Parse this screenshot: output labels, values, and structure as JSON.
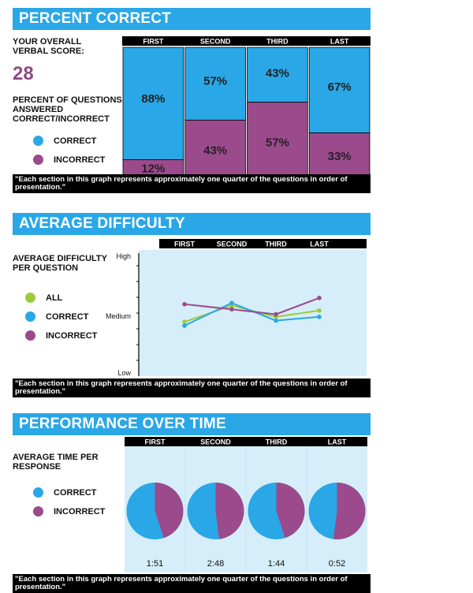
{
  "percent_correct": {
    "header": "PERCENT CORRECT",
    "overall_label": "YOUR OVERALL VERBAL SCORE:",
    "score": "28",
    "pct_label": "PERCENT OF QUESTIONS ANSWERED CORRECT/INCORRECT",
    "legend_correct": "CORRECT",
    "legend_incorrect": "INCORRECT",
    "note": "\"Each section in this graph represents approximately one quarter of the questions in order of presentation.\""
  },
  "average_difficulty": {
    "header": "AVERAGE DIFFICULTY",
    "label": "AVERAGE DIFFICULTY PER QUESTION",
    "legend_all": "ALL",
    "legend_correct": "CORRECT",
    "legend_incorrect": "INCORRECT",
    "note": "\"Each section in this graph represents approximately one quarter of the questions in order of presentation.\""
  },
  "performance_over_time": {
    "header": "PERFORMANCE OVER TIME",
    "label": "AVERAGE TIME PER RESPONSE",
    "legend_correct": "CORRECT",
    "legend_incorrect": "INCORRECT",
    "note": "\"Each section in this graph represents approximately one quarter of the questions in order of presentation.\""
  },
  "colors": {
    "correct": "#2aa7e6",
    "incorrect": "#9b4a8b",
    "all": "#9ccc3c",
    "header": "#2aa7e6",
    "plot_bg": "#d5eef9"
  },
  "chart_data": [
    {
      "type": "bar",
      "title": "PERCENT CORRECT",
      "categories": [
        "FIRST",
        "SECOND",
        "THIRD",
        "LAST"
      ],
      "series": [
        {
          "name": "CORRECT",
          "values": [
            88,
            57,
            43,
            67
          ]
        },
        {
          "name": "INCORRECT",
          "values": [
            12,
            43,
            57,
            33
          ]
        }
      ],
      "value_labels": {
        "correct": [
          "88%",
          "57%",
          "43%",
          "67%"
        ],
        "incorrect": [
          "12%",
          "43%",
          "57%",
          "33%"
        ]
      },
      "ylim": [
        0,
        100
      ]
    },
    {
      "type": "line",
      "title": "AVERAGE DIFFICULTY",
      "categories": [
        "FIRST",
        "SECOND",
        "THIRD",
        "LAST"
      ],
      "y_tick_labels": [
        "High",
        "Medium",
        "Low"
      ],
      "ylim": [
        0,
        100
      ],
      "series": [
        {
          "name": "ALL",
          "values": [
            43,
            56,
            47,
            52
          ]
        },
        {
          "name": "CORRECT",
          "values": [
            40,
            58,
            44,
            47
          ]
        },
        {
          "name": "INCORRECT",
          "values": [
            57,
            53,
            49,
            62
          ]
        }
      ]
    },
    {
      "type": "pie",
      "title": "PERFORMANCE OVER TIME",
      "categories": [
        "FIRST",
        "SECOND",
        "THIRD",
        "LAST"
      ],
      "series": [
        {
          "name": "CORRECT",
          "values": [
            55,
            52,
            55,
            48
          ]
        },
        {
          "name": "INCORRECT",
          "values": [
            45,
            48,
            45,
            52
          ]
        }
      ],
      "time_labels": [
        "1:51",
        "2:48",
        "1:44",
        "0:52"
      ]
    }
  ]
}
